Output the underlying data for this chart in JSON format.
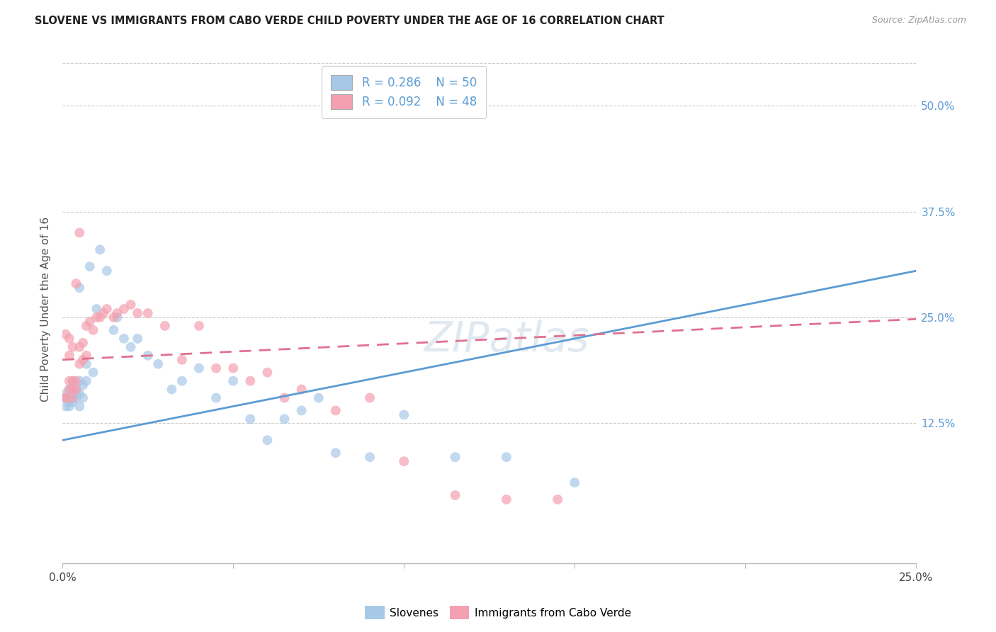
{
  "title": "SLOVENE VS IMMIGRANTS FROM CABO VERDE CHILD POVERTY UNDER THE AGE OF 16 CORRELATION CHART",
  "source": "Source: ZipAtlas.com",
  "ylabel": "Child Poverty Under the Age of 16",
  "ytick_labels": [
    "12.5%",
    "25.0%",
    "37.5%",
    "50.0%"
  ],
  "ytick_values": [
    0.125,
    0.25,
    0.375,
    0.5
  ],
  "xlim": [
    0.0,
    0.25
  ],
  "ylim": [
    -0.04,
    0.56
  ],
  "color_blue": "#A8C8E8",
  "color_pink": "#F4A0B0",
  "color_blue_line": "#5B9BD5",
  "color_pink_line": "#E07090",
  "color_title": "#222222",
  "color_source": "#999999",
  "label_slovenes": "Slovenes",
  "label_cabo": "Immigrants from Cabo Verde",
  "blue_line_x": [
    0.0,
    0.25
  ],
  "blue_line_y": [
    0.105,
    0.305
  ],
  "pink_line_x": [
    0.0,
    0.25
  ],
  "pink_line_y": [
    0.2,
    0.248
  ],
  "slovene_x": [
    0.001,
    0.001,
    0.001,
    0.002,
    0.002,
    0.002,
    0.002,
    0.003,
    0.003,
    0.003,
    0.003,
    0.004,
    0.004,
    0.004,
    0.005,
    0.005,
    0.005,
    0.005,
    0.006,
    0.006,
    0.007,
    0.007,
    0.008,
    0.009,
    0.01,
    0.011,
    0.013,
    0.015,
    0.016,
    0.018,
    0.02,
    0.022,
    0.025,
    0.028,
    0.032,
    0.035,
    0.04,
    0.045,
    0.05,
    0.055,
    0.06,
    0.065,
    0.07,
    0.075,
    0.08,
    0.09,
    0.1,
    0.115,
    0.13,
    0.15
  ],
  "slovene_y": [
    0.145,
    0.155,
    0.16,
    0.15,
    0.145,
    0.155,
    0.165,
    0.15,
    0.16,
    0.155,
    0.175,
    0.16,
    0.155,
    0.165,
    0.145,
    0.285,
    0.16,
    0.175,
    0.155,
    0.17,
    0.175,
    0.195,
    0.31,
    0.185,
    0.26,
    0.33,
    0.305,
    0.235,
    0.25,
    0.225,
    0.215,
    0.225,
    0.205,
    0.195,
    0.165,
    0.175,
    0.19,
    0.155,
    0.175,
    0.13,
    0.105,
    0.13,
    0.14,
    0.155,
    0.09,
    0.085,
    0.135,
    0.085,
    0.085,
    0.055
  ],
  "cabo_x": [
    0.001,
    0.001,
    0.001,
    0.002,
    0.002,
    0.002,
    0.002,
    0.003,
    0.003,
    0.003,
    0.003,
    0.004,
    0.004,
    0.004,
    0.005,
    0.005,
    0.005,
    0.006,
    0.006,
    0.007,
    0.007,
    0.008,
    0.009,
    0.01,
    0.011,
    0.012,
    0.013,
    0.015,
    0.016,
    0.018,
    0.02,
    0.022,
    0.025,
    0.03,
    0.035,
    0.04,
    0.045,
    0.05,
    0.055,
    0.06,
    0.065,
    0.07,
    0.08,
    0.09,
    0.1,
    0.115,
    0.13,
    0.145
  ],
  "cabo_y": [
    0.155,
    0.23,
    0.155,
    0.165,
    0.175,
    0.205,
    0.225,
    0.155,
    0.165,
    0.175,
    0.215,
    0.165,
    0.175,
    0.29,
    0.35,
    0.195,
    0.215,
    0.2,
    0.22,
    0.205,
    0.24,
    0.245,
    0.235,
    0.25,
    0.25,
    0.255,
    0.26,
    0.25,
    0.255,
    0.26,
    0.265,
    0.255,
    0.255,
    0.24,
    0.2,
    0.24,
    0.19,
    0.19,
    0.175,
    0.185,
    0.155,
    0.165,
    0.14,
    0.155,
    0.08,
    0.04,
    0.035,
    0.035
  ]
}
